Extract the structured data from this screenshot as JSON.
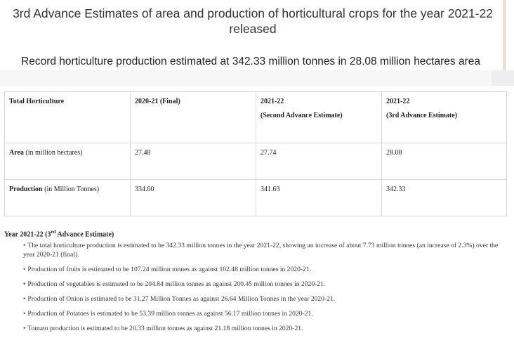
{
  "title": "3rd Advance Estimates of area and production of horticultural crops for the year 2021-22 released",
  "subtitle": "Record horticulture production estimated at 342.33 million tonnes in 28.08 million hectares area",
  "table": {
    "headers": [
      {
        "line1": "Total Horticulture",
        "line2": ""
      },
      {
        "line1": "2020-21 (Final)",
        "line2": ""
      },
      {
        "line1": "2021-22",
        "line2": "(Second Advance Estimate)"
      },
      {
        "line1": "2021-22",
        "line2": "(3rd Advance Estimate)"
      }
    ],
    "rows": [
      {
        "label_bold": "Area",
        "label_rest": " (in million hectares)",
        "values": [
          "27.48",
          "27.74",
          "28.08"
        ]
      },
      {
        "label_bold": "Production",
        "label_rest": " (in Million Tonnes)",
        "values": [
          "334.60",
          "341.63",
          "342.33"
        ]
      }
    ]
  },
  "section": {
    "prefix": "Year 2021-22 (3",
    "sup": "rd",
    "suffix": " Advance Estimate)"
  },
  "bullet_char": "•",
  "points": [
    "The total horticulture production is estimated to be 342.33 million tonnes in the year 2021-22, showing an increase of about 7.73 million tonnes (an increase of 2.3%) over the year 2020-21 (final).",
    "Production of fruits is estimated to be 107.24 million tonnes as against 102.48 million tonnes in 2020-21.",
    "Production of vegetables is estimated to be 204.84 million tonnes as against 200.45 million tonnes in 2020-21.",
    "Production of Onion is estimated to be 31.27 Million Tonnes as against 26.64 Million Tonnes in the year 2020-21.",
    "Production of Potatoes is estimated to be 53.39 million tonnes as against 56.17 million tonnes in 2020-21.",
    "Tomato production is estimated to be 20.33 million tonnes as against 21.18 million tonnes in 2020-21."
  ],
  "colors": {
    "text": "#333333",
    "table_border": "#d6d6d6",
    "band": "#eeeeee"
  }
}
